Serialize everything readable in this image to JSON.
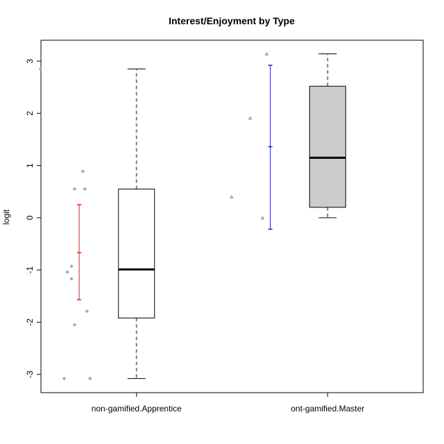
{
  "chart_data": {
    "type": "boxplot",
    "title": "Interest/Enjoyment by Type",
    "xlabel": "",
    "ylabel": "logit",
    "ylim": [
      -3.35,
      3.4
    ],
    "yticks": [
      -3,
      -2,
      -1,
      0,
      1,
      2,
      3
    ],
    "ytick_labels": [
      "-3",
      "-2",
      "-1",
      "0",
      "1",
      "2",
      "3"
    ],
    "categories": [
      "non-gamified.Apprentice",
      "ont-gamified.Master"
    ],
    "boxes": [
      {
        "category": "non-gamified.Apprentice",
        "whisker_low": -3.08,
        "q1": -1.92,
        "median": -0.99,
        "q3": 0.55,
        "whisker_high": 2.85,
        "fill": "#ffffff"
      },
      {
        "category": "ont-gamified.Master",
        "whisker_low": 0.0,
        "q1": 0.2,
        "median": 1.15,
        "q3": 2.52,
        "whisker_high": 3.14,
        "fill": "#cccccc"
      }
    ],
    "error_bars": [
      {
        "category": "non-gamified.Apprentice",
        "low": -1.57,
        "mid": -0.67,
        "high": 0.25,
        "color": "#e41a1c"
      },
      {
        "category": "ont-gamified.Master",
        "low": -0.22,
        "mid": 1.36,
        "high": 2.92,
        "color": "#1f1fbf"
      }
    ],
    "jitter_points": [
      {
        "category": "non-gamified.Apprentice",
        "marker": "circle",
        "color": "#aaaaaa",
        "offsets": [
          -0.93,
          -0.7,
          -0.67,
          -0.63,
          -0.63,
          -0.6,
          -0.6,
          -0.52,
          -0.5,
          -0.48,
          -0.45
        ],
        "values": [
          2.85,
          -3.08,
          -1.04,
          -0.93,
          -1.17,
          -2.05,
          0.55,
          0.89,
          0.55,
          -1.79,
          -3.08
        ]
      },
      {
        "category": "ont-gamified.Master",
        "marker": "triangle",
        "color": "#aaaaaa",
        "offsets": [
          -0.93,
          -0.75,
          -0.63,
          -0.59
        ],
        "values": [
          0.4,
          1.91,
          0.0,
          3.14
        ]
      }
    ],
    "colors": {
      "median": "#000000",
      "whisker": "#7f7f7f",
      "box_border": "#000000",
      "frame": "#000000",
      "point": "#aaaaaa"
    }
  }
}
